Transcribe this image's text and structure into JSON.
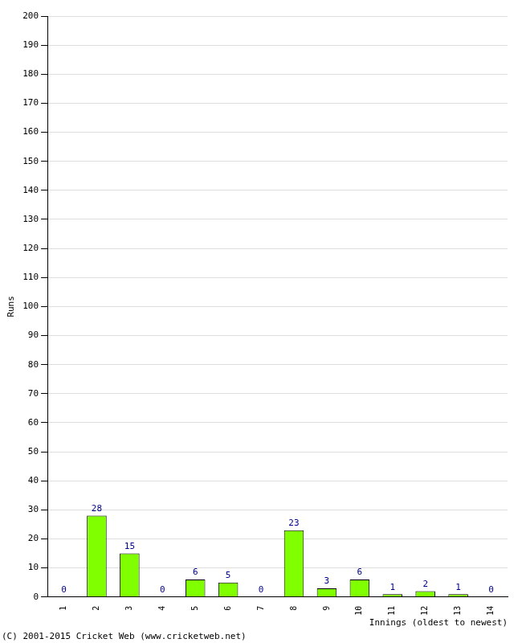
{
  "chart_data": {
    "type": "bar",
    "categories": [
      "1",
      "2",
      "3",
      "4",
      "5",
      "6",
      "7",
      "8",
      "9",
      "10",
      "11",
      "12",
      "13",
      "14"
    ],
    "values": [
      0,
      28,
      15,
      0,
      6,
      5,
      0,
      23,
      3,
      6,
      1,
      2,
      1,
      0
    ],
    "color": "#80ff00",
    "x_label": "Innings (oldest to newest)",
    "y_label": "Runs",
    "ylim": [
      0,
      200
    ],
    "yticks": [
      0,
      10,
      20,
      30,
      40,
      50,
      60,
      70,
      80,
      90,
      100,
      110,
      120,
      130,
      140,
      150,
      160,
      170,
      180,
      190,
      200
    ],
    "grid": true,
    "data_labels": true,
    "annotations": [
      "(C) 2001-2015 Cricket Web (www.cricketweb.net)"
    ]
  }
}
